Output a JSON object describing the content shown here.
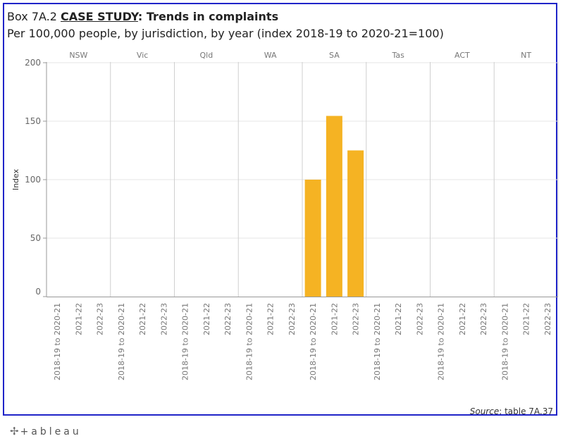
{
  "title": {
    "prefix": "Box 7A.2 ",
    "highlight": "CASE STUDY",
    "suffix": ": Trends in complaints"
  },
  "subtitle": "Per 100,000 people, by jurisdiction, by year (index 2018-19 to 2020-21=100)",
  "source": {
    "label": "Source",
    "text": ": table 7A.37"
  },
  "footer": {
    "brand": "+ableau",
    "cross_icon": "✢"
  },
  "colors": {
    "bar": "#f5b323",
    "frame": "#1f24c8",
    "grid": "#e6e6e6",
    "divider": "#cfcfcf"
  },
  "chart_data": {
    "type": "bar",
    "title": "CASE STUDY: Trends in complaints",
    "ylabel": "Index",
    "ylim": [
      0,
      200
    ],
    "yticks": [
      0,
      50,
      100,
      150,
      200
    ],
    "panels": [
      "NSW",
      "Vic",
      "Qld",
      "WA",
      "SA",
      "Tas",
      "ACT",
      "NT"
    ],
    "categories": [
      "2018-19 to 2020-21",
      "2021-22",
      "2022-23"
    ],
    "series": [
      {
        "panel": "NSW",
        "values": [
          null,
          null,
          null
        ]
      },
      {
        "panel": "Vic",
        "values": [
          null,
          null,
          null
        ]
      },
      {
        "panel": "Qld",
        "values": [
          null,
          null,
          null
        ]
      },
      {
        "panel": "WA",
        "values": [
          null,
          null,
          null
        ]
      },
      {
        "panel": "SA",
        "values": [
          100,
          154.5,
          125
        ]
      },
      {
        "panel": "Tas",
        "values": [
          null,
          null,
          null
        ]
      },
      {
        "panel": "ACT",
        "values": [
          null,
          null,
          null
        ]
      },
      {
        "panel": "NT",
        "values": [
          null,
          null,
          null
        ]
      }
    ],
    "grid": true
  }
}
